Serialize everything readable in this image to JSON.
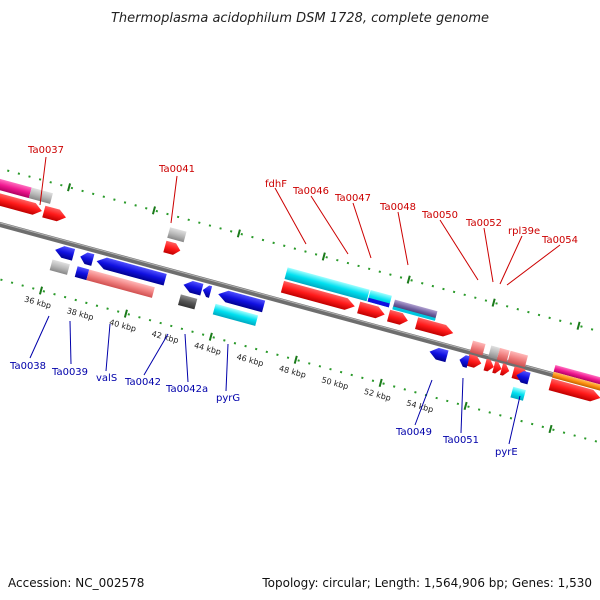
{
  "title": "Thermoplasma acidophilum DSM 1728, complete genome",
  "accession": "Accession: NC_002578",
  "topology": "Topology: circular; Length: 1,564,906 bp; Genes: 1,530",
  "ticks": [
    "36 kbp",
    "38 kbp",
    "40 kbp",
    "42 kbp",
    "44 kbp",
    "46 kbp",
    "48 kbp",
    "50 kbp",
    "52 kbp",
    "54 kbp"
  ],
  "top_labels": [
    "Ta0037",
    "Ta0041",
    "fdhF",
    "Ta0046",
    "Ta0047",
    "Ta0048",
    "Ta0050",
    "Ta0052",
    "rpl39e",
    "Ta0054"
  ],
  "bottom_labels": [
    "Ta0038",
    "Ta0039",
    "valS",
    "Ta0042",
    "Ta0042a",
    "pyrG",
    "Ta0049",
    "Ta0051",
    "pyrE"
  ],
  "colors": {
    "forward_cds": "#ff1a1a",
    "reverse_cds": "#1010e0",
    "cyan_feature": "#00e0f0",
    "pink_feature": "#f08080",
    "magenta_feature": "#f01890",
    "gray_feature": "#b8b8b8",
    "backbone": "#6e6e6e",
    "tick_green": "#2a9a2a"
  }
}
